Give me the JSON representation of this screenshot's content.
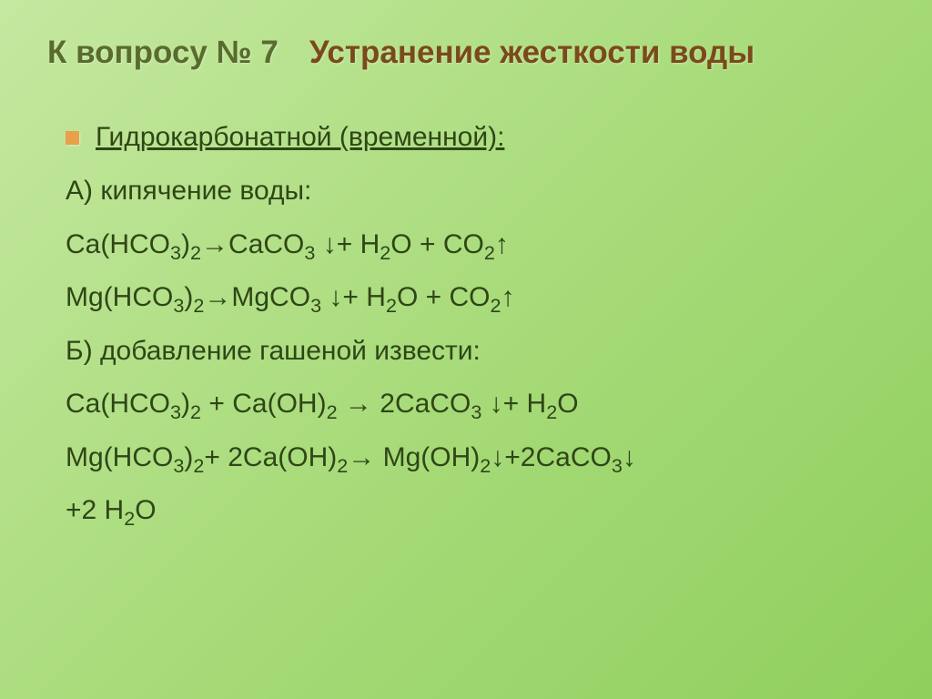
{
  "colors": {
    "bg_from": "#c5e8a0",
    "bg_to": "#8fcf5d",
    "title_left": "#5a6b2e",
    "title_right": "#7b4a1a",
    "body_text": "#2f4616",
    "bullet": "#e8a04a"
  },
  "typography": {
    "title_fontsize_pt": 26,
    "body_fontsize_pt": 22,
    "font_family": "Arial"
  },
  "slide": {
    "title_left": "К вопросу № 7",
    "title_right": "Устранение жесткости воды",
    "subheading": "Гидрокарбонатной (временной):",
    "section_a_label": "А) кипячение воды:",
    "section_b_label": "Б) добавление гашеной извести:",
    "eq_a1": "Ca(HCO<sub>3</sub>)<sub>2</sub>→CaCO<sub>3</sub> ↓+ H<sub>2</sub>O + CO<sub>2</sub>↑",
    "eq_a2": "Mg(HCO<sub>3</sub>)<sub>2</sub>→MgCO<sub>3</sub> ↓+ H<sub>2</sub>O + CO<sub>2</sub>↑",
    "eq_b1": "Ca(HCO<sub>3</sub>)<sub>2</sub> + Ca(OH)<sub>2</sub> → 2CaCO<sub>3</sub> ↓+ H<sub>2</sub>O",
    "eq_b2": "Mg(HCO<sub>3</sub>)<sub>2</sub>+ 2Ca(OH)<sub>2</sub>→ Mg(OH)<sub>2</sub>↓+2CaCO<sub>3</sub>↓",
    "eq_b2_cont": "+2 H<sub>2</sub>O"
  }
}
